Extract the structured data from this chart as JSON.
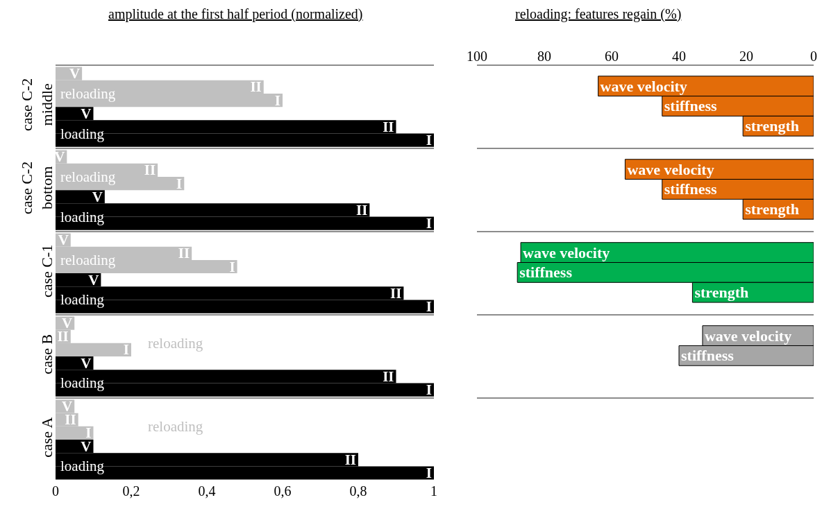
{
  "chart_data": [
    {
      "type": "bar",
      "orientation": "horizontal",
      "title": "amplitude at the first half period (normalized)",
      "categories": [
        "case C-2\nmiddle",
        "case C-2\nbottom",
        "case C-1",
        "case B",
        "case A"
      ],
      "series": [
        {
          "name": "V",
          "color": "#c0c0c0",
          "values": [
            0.07,
            0.03,
            0.04,
            0.05,
            0.05
          ]
        },
        {
          "name": "II",
          "color": "#c0c0c0",
          "values": [
            0.55,
            0.27,
            0.36,
            0.04,
            0.06
          ]
        },
        {
          "name": "I",
          "color": "#c0c0c0",
          "values": [
            0.6,
            0.34,
            0.48,
            0.2,
            0.1
          ]
        },
        {
          "name": "V",
          "color": "#000000",
          "values": [
            0.1,
            0.13,
            0.12,
            0.1,
            0.1
          ]
        },
        {
          "name": "II",
          "color": "#000000",
          "values": [
            0.9,
            0.83,
            0.92,
            0.9,
            0.8
          ]
        },
        {
          "name": "I",
          "color": "#000000",
          "values": [
            1,
            1,
            1,
            1,
            1
          ]
        }
      ],
      "xlim": [
        0,
        1
      ],
      "xticks": [
        0,
        {
          "value": 0.2,
          "label": "0,2"
        },
        {
          "value": 0.4,
          "label": "0,4"
        },
        {
          "value": 0.6,
          "label": "0,6"
        },
        {
          "value": 0.8,
          "label": "0,8"
        },
        1
      ],
      "annotations": [
        "reloading",
        "loading",
        "reloading",
        "loading",
        "reloading",
        "loading",
        "reloading",
        "loading",
        "reloading",
        "loading"
      ],
      "grid": "y"
    },
    {
      "type": "bar",
      "orientation": "horizontal",
      "title": "reloading: features regain (%)",
      "categories": [
        "case C-2\nmiddle",
        "case C-2\nbottom",
        "case C-1",
        "case B",
        "case A"
      ],
      "series": [
        {
          "name": "wave velocity",
          "colors": [
            "#e36c09",
            "#e36c09",
            "#00b050",
            "#a6a6a6",
            null
          ],
          "values": [
            64,
            56,
            87,
            33,
            null
          ]
        },
        {
          "name": "stiffness",
          "colors": [
            "#e36c09",
            "#e36c09",
            "#00b050",
            "#a6a6a6",
            null
          ],
          "values": [
            45,
            45,
            88,
            40,
            null
          ]
        },
        {
          "name": "strength",
          "colors": [
            "#e36c09",
            "#e36c09",
            "#00b050",
            null,
            null
          ],
          "values": [
            21,
            21,
            36,
            null,
            null
          ]
        }
      ],
      "xlim": [
        100,
        0
      ],
      "xticks": [
        100,
        80,
        60,
        40,
        20,
        0
      ],
      "tick_labels": "x",
      "grid": "y"
    }
  ]
}
